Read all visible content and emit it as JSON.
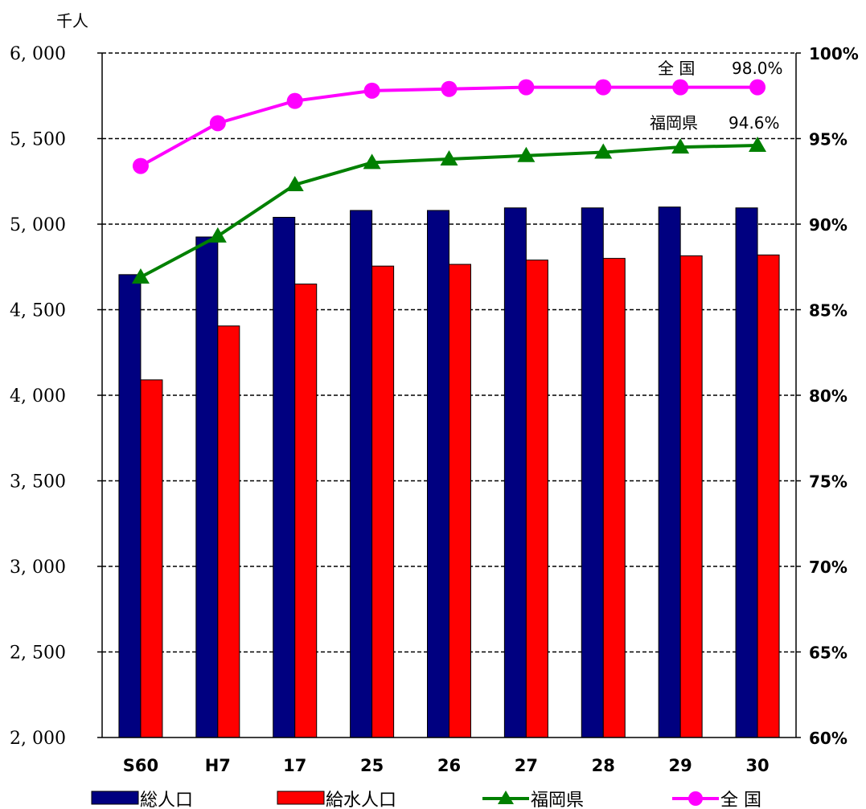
{
  "chart_data": {
    "type": "bar",
    "categories": [
      "S60",
      "H7",
      "17",
      "25",
      "26",
      "27",
      "28",
      "29",
      "30"
    ],
    "left_axis": {
      "unit_label": "千人",
      "ylim": [
        2000,
        6000
      ],
      "ticks": [
        2000,
        2500,
        3000,
        3500,
        4000,
        4500,
        5000,
        5500,
        6000
      ],
      "tick_labels": [
        "2, 000",
        "2, 500",
        "3, 000",
        "3, 500",
        "4, 000",
        "4, 500",
        "5, 000",
        "5, 500",
        "6, 000"
      ]
    },
    "right_axis": {
      "ylim": [
        60,
        100
      ],
      "ticks": [
        60,
        65,
        70,
        75,
        80,
        85,
        90,
        95,
        100
      ],
      "tick_labels": [
        "60%",
        "65%",
        "70%",
        "75%",
        "80%",
        "85%",
        "90%",
        "95%",
        "100%"
      ]
    },
    "series": [
      {
        "name": "総人口",
        "kind": "bar",
        "axis": "left",
        "color": "#000080",
        "values": [
          4705,
          4925,
          5040,
          5080,
          5080,
          5095,
          5095,
          5100,
          5095
        ]
      },
      {
        "name": "給水人口",
        "kind": "bar",
        "axis": "left",
        "color": "#ff0000",
        "values": [
          4090,
          4405,
          4650,
          4755,
          4765,
          4790,
          4800,
          4815,
          4820
        ]
      },
      {
        "name": "福岡県",
        "kind": "line",
        "axis": "right",
        "color": "#008000",
        "marker": "triangle",
        "values": [
          86.9,
          89.3,
          92.3,
          93.6,
          93.8,
          94.0,
          94.2,
          94.5,
          94.6
        ]
      },
      {
        "name": "全 国",
        "kind": "line",
        "axis": "right",
        "color": "#ff00ff",
        "marker": "circle",
        "values": [
          93.4,
          95.9,
          97.2,
          97.8,
          97.9,
          98.0,
          98.0,
          98.0,
          98.0
        ]
      }
    ],
    "annotations": [
      {
        "name": "全 国",
        "value": "98.0%",
        "series": "全 国"
      },
      {
        "name": "福岡県",
        "value": "94.6%",
        "series": "福岡県"
      }
    ],
    "grid": true,
    "legend_position": "bottom"
  }
}
